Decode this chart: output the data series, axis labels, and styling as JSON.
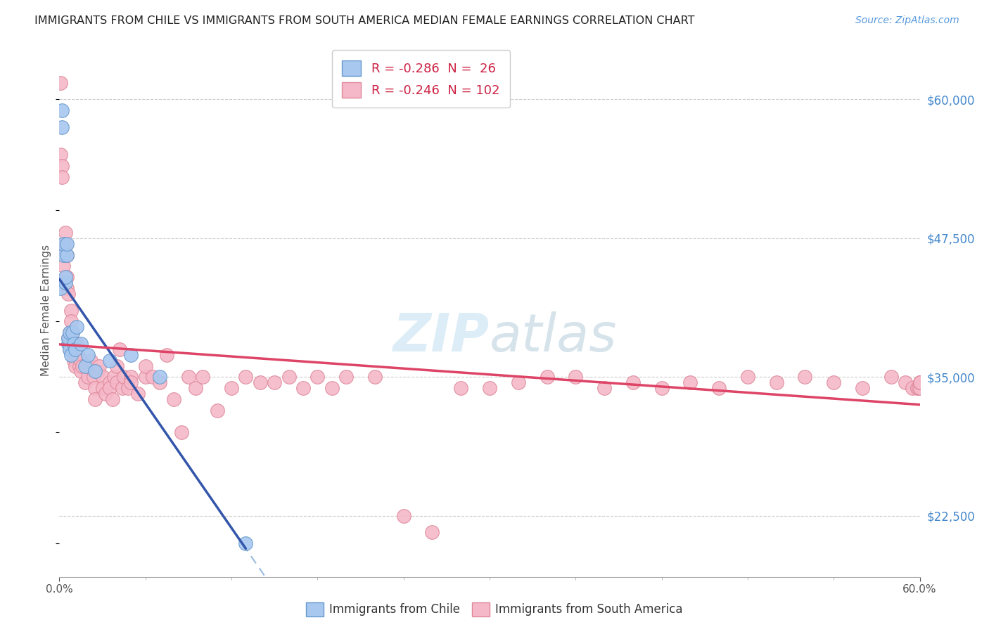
{
  "title": "IMMIGRANTS FROM CHILE VS IMMIGRANTS FROM SOUTH AMERICA MEDIAN FEMALE EARNINGS CORRELATION CHART",
  "source": "Source: ZipAtlas.com",
  "ylabel": "Median Female Earnings",
  "right_yticks": [
    22500,
    35000,
    47500,
    60000
  ],
  "right_yticklabels": [
    "$22,500",
    "$35,000",
    "$47,500",
    "$60,000"
  ],
  "xlim": [
    0.0,
    0.6
  ],
  "ylim": [
    17000,
    65000
  ],
  "legend_chile_R": "-0.286",
  "legend_chile_N": "26",
  "legend_sa_R": "-0.246",
  "legend_sa_N": "102",
  "chile_color": "#A8C8F0",
  "chile_edge_color": "#6699CC",
  "sa_color": "#F5B8C8",
  "sa_edge_color": "#DD8899",
  "chile_line_color": "#3355AA",
  "sa_line_color": "#DD4466",
  "dashed_line_color": "#99BBDD",
  "watermark_color": "#BBDDF0",
  "chile_x": [
    0.001,
    0.002,
    0.002,
    0.003,
    0.003,
    0.004,
    0.004,
    0.005,
    0.005,
    0.006,
    0.006,
    0.007,
    0.007,
    0.008,
    0.009,
    0.01,
    0.011,
    0.012,
    0.015,
    0.018,
    0.02,
    0.025,
    0.035,
    0.05,
    0.07,
    0.13
  ],
  "chile_y": [
    43000,
    57500,
    59000,
    46000,
    47000,
    43500,
    44000,
    46000,
    47000,
    38000,
    38500,
    39000,
    37500,
    37000,
    39000,
    38000,
    37500,
    39500,
    38000,
    36000,
    37000,
    35500,
    36500,
    37000,
    35000,
    20000
  ],
  "sa_x": [
    0.001,
    0.001,
    0.002,
    0.002,
    0.003,
    0.003,
    0.004,
    0.004,
    0.005,
    0.005,
    0.005,
    0.006,
    0.006,
    0.007,
    0.007,
    0.008,
    0.008,
    0.009,
    0.009,
    0.01,
    0.01,
    0.011,
    0.012,
    0.013,
    0.014,
    0.015,
    0.015,
    0.016,
    0.018,
    0.02,
    0.02,
    0.022,
    0.024,
    0.025,
    0.025,
    0.027,
    0.028,
    0.03,
    0.03,
    0.032,
    0.035,
    0.035,
    0.037,
    0.038,
    0.04,
    0.04,
    0.042,
    0.044,
    0.045,
    0.048,
    0.05,
    0.05,
    0.055,
    0.06,
    0.06,
    0.065,
    0.07,
    0.075,
    0.08,
    0.085,
    0.09,
    0.095,
    0.1,
    0.11,
    0.12,
    0.13,
    0.14,
    0.15,
    0.16,
    0.17,
    0.18,
    0.19,
    0.2,
    0.22,
    0.24,
    0.26,
    0.28,
    0.3,
    0.32,
    0.34,
    0.36,
    0.38,
    0.4,
    0.42,
    0.44,
    0.46,
    0.48,
    0.5,
    0.52,
    0.54,
    0.56,
    0.58,
    0.59,
    0.595,
    0.598,
    0.599,
    0.6,
    0.6,
    0.6,
    0.6,
    0.6,
    0.6
  ],
  "sa_y": [
    61500,
    55000,
    54000,
    53000,
    46500,
    45000,
    48000,
    47000,
    46000,
    44000,
    43000,
    42500,
    38500,
    39000,
    37500,
    41000,
    40000,
    38000,
    39000,
    37000,
    36500,
    36000,
    38000,
    37000,
    36000,
    36500,
    35500,
    36000,
    34500,
    35000,
    36000,
    36500,
    35000,
    34000,
    33000,
    35500,
    36000,
    35000,
    34000,
    33500,
    34500,
    34000,
    33000,
    35000,
    36000,
    34500,
    37500,
    34000,
    35000,
    34000,
    35000,
    34500,
    33500,
    35000,
    36000,
    35000,
    34500,
    37000,
    33000,
    30000,
    35000,
    34000,
    35000,
    32000,
    34000,
    35000,
    34500,
    34500,
    35000,
    34000,
    35000,
    34000,
    35000,
    35000,
    22500,
    21000,
    34000,
    34000,
    34500,
    35000,
    35000,
    34000,
    34500,
    34000,
    34500,
    34000,
    35000,
    34500,
    35000,
    34500,
    34000,
    35000,
    34500,
    34000,
    34000,
    34000,
    34500,
    34000,
    34500,
    34500,
    34500,
    34500
  ]
}
